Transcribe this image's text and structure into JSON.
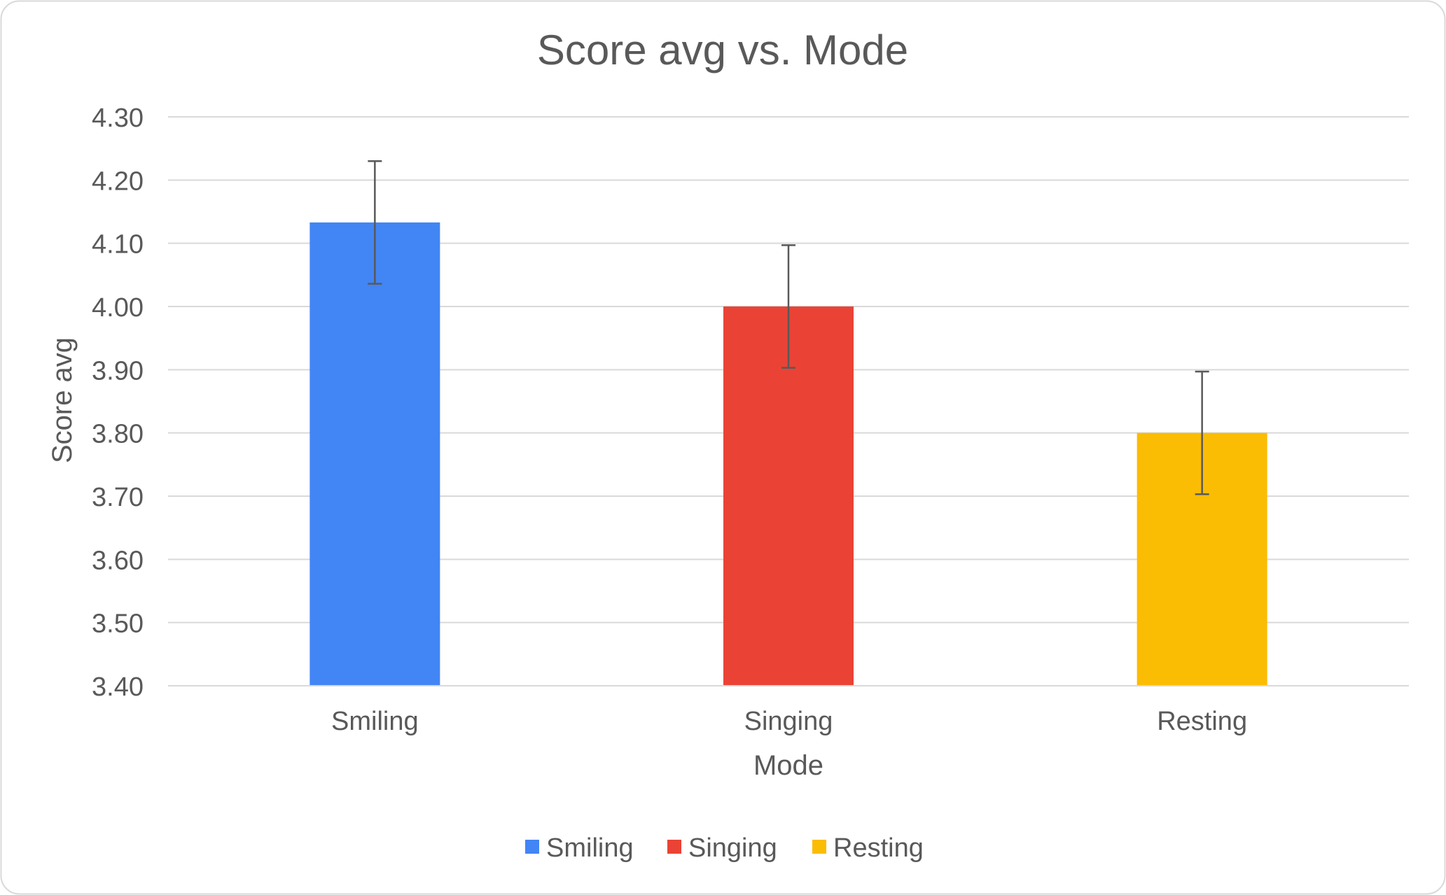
{
  "chart_data": {
    "type": "bar",
    "title": "Score avg vs. Mode",
    "xlabel": "Mode",
    "ylabel": "Score avg",
    "categories": [
      "Smiling",
      "Singing",
      "Resting"
    ],
    "values": [
      4.133,
      4.0,
      3.8
    ],
    "error_bars": [
      {
        "lower": 4.036,
        "upper": 4.23
      },
      {
        "lower": 3.903,
        "upper": 4.097
      },
      {
        "lower": 3.703,
        "upper": 3.897
      }
    ],
    "colors": [
      "#4285F4",
      "#EA4335",
      "#FBBC04"
    ],
    "ylim": [
      3.4,
      4.3
    ],
    "ytick_values": [
      3.4,
      3.5,
      3.6,
      3.7,
      3.8,
      3.9,
      4.0,
      4.1,
      4.2,
      4.3
    ],
    "ytick_labels": [
      "3.40",
      "3.50",
      "3.60",
      "3.70",
      "3.80",
      "3.90",
      "4.00",
      "4.10",
      "4.20",
      "4.30"
    ],
    "grid": true,
    "legend": {
      "position": "bottom",
      "entries": [
        "Smiling",
        "Singing",
        "Resting"
      ]
    }
  }
}
